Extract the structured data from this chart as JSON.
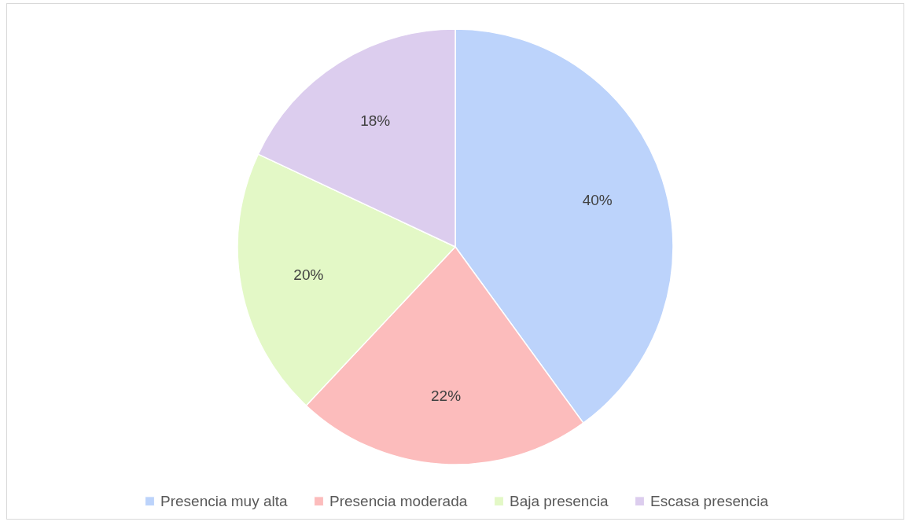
{
  "chart_data": {
    "type": "pie",
    "categories": [
      "Presencia muy alta",
      "Presencia moderada",
      "Baja presencia",
      "Escasa presencia"
    ],
    "values": [
      40,
      22,
      20,
      18
    ],
    "value_labels": [
      "40%",
      "22%",
      "20%",
      "18%"
    ],
    "colors": [
      "#bcd3fb",
      "#fcbcbc",
      "#e3f8c6",
      "#dccdee"
    ],
    "legend": "bottom"
  }
}
